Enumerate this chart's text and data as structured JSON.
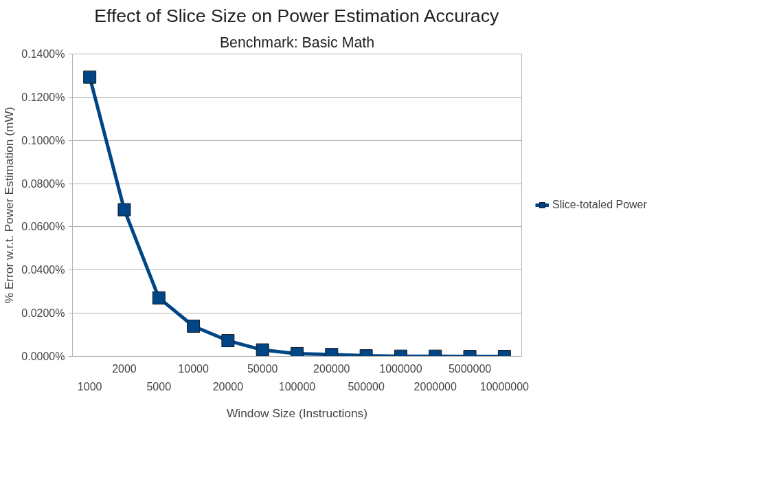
{
  "chart_data": {
    "type": "line",
    "title": "Effect of Slice Size on Power Estimation Accuracy",
    "subtitle": "Benchmark: Basic Math",
    "xlabel": "Window Size (Instructions)",
    "ylabel": "% Error w.r.t. Power Estimation (mW)",
    "categories": [
      "1000",
      "2000",
      "5000",
      "10000",
      "20000",
      "50000",
      "100000",
      "200000",
      "500000",
      "1000000",
      "2000000",
      "5000000",
      "10000000"
    ],
    "series": [
      {
        "name": "Slice-totaled Power",
        "color": "#004586",
        "values": [
          0.1293,
          0.0679,
          0.0271,
          0.014,
          0.0073,
          0.003,
          0.0013,
          0.0009,
          0.0003,
          0.0001,
          0.0001,
          0.0,
          0.0
        ]
      }
    ],
    "ylim": [
      0,
      0.14
    ],
    "yticks": [
      {
        "value": 0,
        "label": "0.0000%"
      },
      {
        "value": 0.02,
        "label": "0.0200%"
      },
      {
        "value": 0.04,
        "label": "0.0400%"
      },
      {
        "value": 0.06,
        "label": "0.0600%"
      },
      {
        "value": 0.08,
        "label": "0.0800%"
      },
      {
        "value": 0.1,
        "label": "0.1000%"
      },
      {
        "value": 0.12,
        "label": "0.1200%"
      },
      {
        "value": 0.14,
        "label": "0.1400%"
      }
    ],
    "grid": "y",
    "legend": "right",
    "marker": "square",
    "line_style": "solid"
  }
}
